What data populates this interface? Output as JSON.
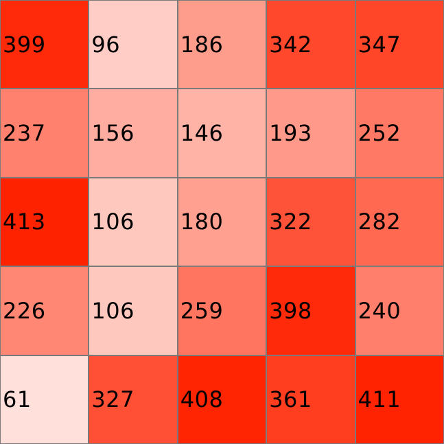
{
  "chart_data": {
    "type": "heatmap",
    "title": "",
    "xlabel": "",
    "ylabel": "",
    "rows": 5,
    "cols": 5,
    "values": [
      [
        399,
        96,
        186,
        342,
        347
      ],
      [
        237,
        156,
        146,
        193,
        252
      ],
      [
        413,
        106,
        180,
        322,
        282
      ],
      [
        226,
        106,
        259,
        398,
        240
      ],
      [
        61,
        327,
        408,
        361,
        411
      ]
    ],
    "color_range": [
      61,
      413
    ],
    "color_low": "#ffe0db",
    "color_high": "#ff2200",
    "grid": true
  }
}
